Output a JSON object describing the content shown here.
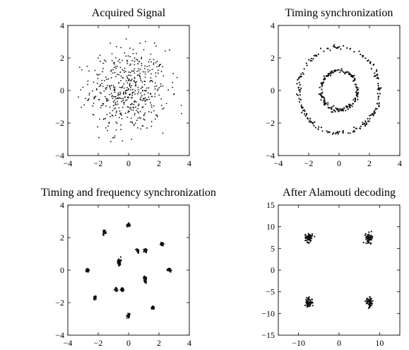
{
  "chart_data": [
    {
      "type": "scatter",
      "title": "Acquired Signal",
      "xlim": [
        -4,
        4
      ],
      "ylim": [
        -4,
        4
      ],
      "xticks": [
        -4,
        -2,
        0,
        2,
        4
      ],
      "yticks": [
        -4,
        -2,
        0,
        2,
        4
      ],
      "xtick_labels": [
        "−4",
        "−2",
        "0",
        "2",
        "4"
      ],
      "ytick_labels": [
        "4",
        "2",
        "0",
        "−2",
        "−4"
      ],
      "grid": false,
      "pattern": "gaussian cloud centered at origin, spread ~1.3 per axis, ~500 points",
      "points": [
        [
          -1.2,
          2.9
        ],
        [
          -0.8,
          2.7
        ],
        [
          0.1,
          2.6
        ],
        [
          1.0,
          2.5
        ],
        [
          -2.0,
          2.0
        ],
        [
          -1.5,
          1.8
        ],
        [
          -0.6,
          1.9
        ],
        [
          0.4,
          2.0
        ],
        [
          1.4,
          1.9
        ],
        [
          2.1,
          1.6
        ],
        [
          -2.6,
          1.2
        ],
        [
          -1.9,
          1.0
        ],
        [
          -0.9,
          1.1
        ],
        [
          0.2,
          1.2
        ],
        [
          1.1,
          1.0
        ],
        [
          2.3,
          0.9
        ],
        [
          2.9,
          0.5
        ],
        [
          -3.0,
          0.2
        ],
        [
          -2.1,
          0.1
        ],
        [
          -1.0,
          0.3
        ],
        [
          0.0,
          0.1
        ],
        [
          0.9,
          0.2
        ],
        [
          1.9,
          0.0
        ],
        [
          3.0,
          -0.2
        ],
        [
          -2.7,
          -0.6
        ],
        [
          -1.7,
          -0.8
        ],
        [
          -0.7,
          -0.5
        ],
        [
          0.5,
          -0.7
        ],
        [
          1.5,
          -0.9
        ],
        [
          2.5,
          -0.8
        ],
        [
          -2.3,
          -1.5
        ],
        [
          -1.2,
          -1.6
        ],
        [
          -0.2,
          -1.4
        ],
        [
          0.8,
          -1.7
        ],
        [
          1.8,
          -1.5
        ],
        [
          -1.5,
          -2.3
        ],
        [
          -0.5,
          -2.4
        ],
        [
          0.6,
          -2.3
        ],
        [
          1.5,
          -2.2
        ],
        [
          -0.9,
          -2.8
        ],
        [
          0.2,
          -3.0
        ],
        [
          -0.4,
          -3.1
        ],
        [
          3.2,
          0.8
        ],
        [
          -3.3,
          -0.4
        ]
      ]
    },
    {
      "type": "scatter",
      "title": "Timing synchronization",
      "xlim": [
        -4,
        4
      ],
      "ylim": [
        -4,
        4
      ],
      "xticks": [
        -4,
        -2,
        0,
        2,
        4
      ],
      "yticks": [
        -4,
        -2,
        0,
        2,
        4
      ],
      "xtick_labels": [
        "−4",
        "−2",
        "0",
        "2",
        "4"
      ],
      "ytick_labels": [
        "4",
        "2",
        "0",
        "−2",
        "−4"
      ],
      "grid": false,
      "pattern": "two concentric rings",
      "rings": [
        {
          "radius": 1.2,
          "spread": 0.07,
          "count": 170
        },
        {
          "radius": 2.65,
          "spread": 0.07,
          "count": 190
        }
      ]
    },
    {
      "type": "scatter",
      "title": "Timing and frequency synchronization",
      "xlim": [
        -4,
        4
      ],
      "ylim": [
        -4,
        4
      ],
      "xticks": [
        -4,
        -2,
        0,
        2,
        4
      ],
      "yticks": [
        -4,
        -2,
        0,
        2,
        4
      ],
      "xtick_labels": [
        "−4",
        "−2",
        "0",
        "2",
        "4"
      ],
      "ytick_labels": [
        "4",
        "2",
        "0",
        "−2",
        "−4"
      ],
      "grid": false,
      "pattern": "16 tight clusters",
      "clusters": [
        [
          0.0,
          2.8
        ],
        [
          -1.6,
          2.3
        ],
        [
          2.2,
          1.6
        ],
        [
          0.6,
          1.2
        ],
        [
          1.1,
          1.2
        ],
        [
          -0.6,
          0.6
        ],
        [
          -0.6,
          0.4
        ],
        [
          -2.7,
          0.0
        ],
        [
          2.7,
          0.0
        ],
        [
          1.1,
          -0.5
        ],
        [
          1.1,
          -0.7
        ],
        [
          -0.8,
          -1.2
        ],
        [
          -0.4,
          -1.2
        ],
        [
          -2.2,
          -1.7
        ],
        [
          1.6,
          -2.3
        ],
        [
          0.0,
          -2.8
        ]
      ],
      "cluster_spread": 0.05,
      "points_per_cluster": 28
    },
    {
      "type": "scatter",
      "title": "After Alamouti decoding",
      "xlim": [
        -15,
        15
      ],
      "ylim": [
        -15,
        15
      ],
      "xticks": [
        -10,
        0,
        10
      ],
      "yticks": [
        -15,
        -10,
        -5,
        0,
        5,
        10,
        15
      ],
      "xtick_labels": [
        "−10",
        "0",
        "10"
      ],
      "ytick_labels": [
        "15",
        "10",
        "5",
        "0",
        "−5",
        "−10",
        "−15"
      ],
      "grid": false,
      "pattern": "4 clusters (QPSK-like)",
      "clusters": [
        [
          -7.5,
          7.5
        ],
        [
          7.5,
          7.5
        ],
        [
          -7.5,
          -7.5
        ],
        [
          7.5,
          -7.5
        ]
      ],
      "cluster_spread": 0.45,
      "points_per_cluster": 60
    }
  ]
}
